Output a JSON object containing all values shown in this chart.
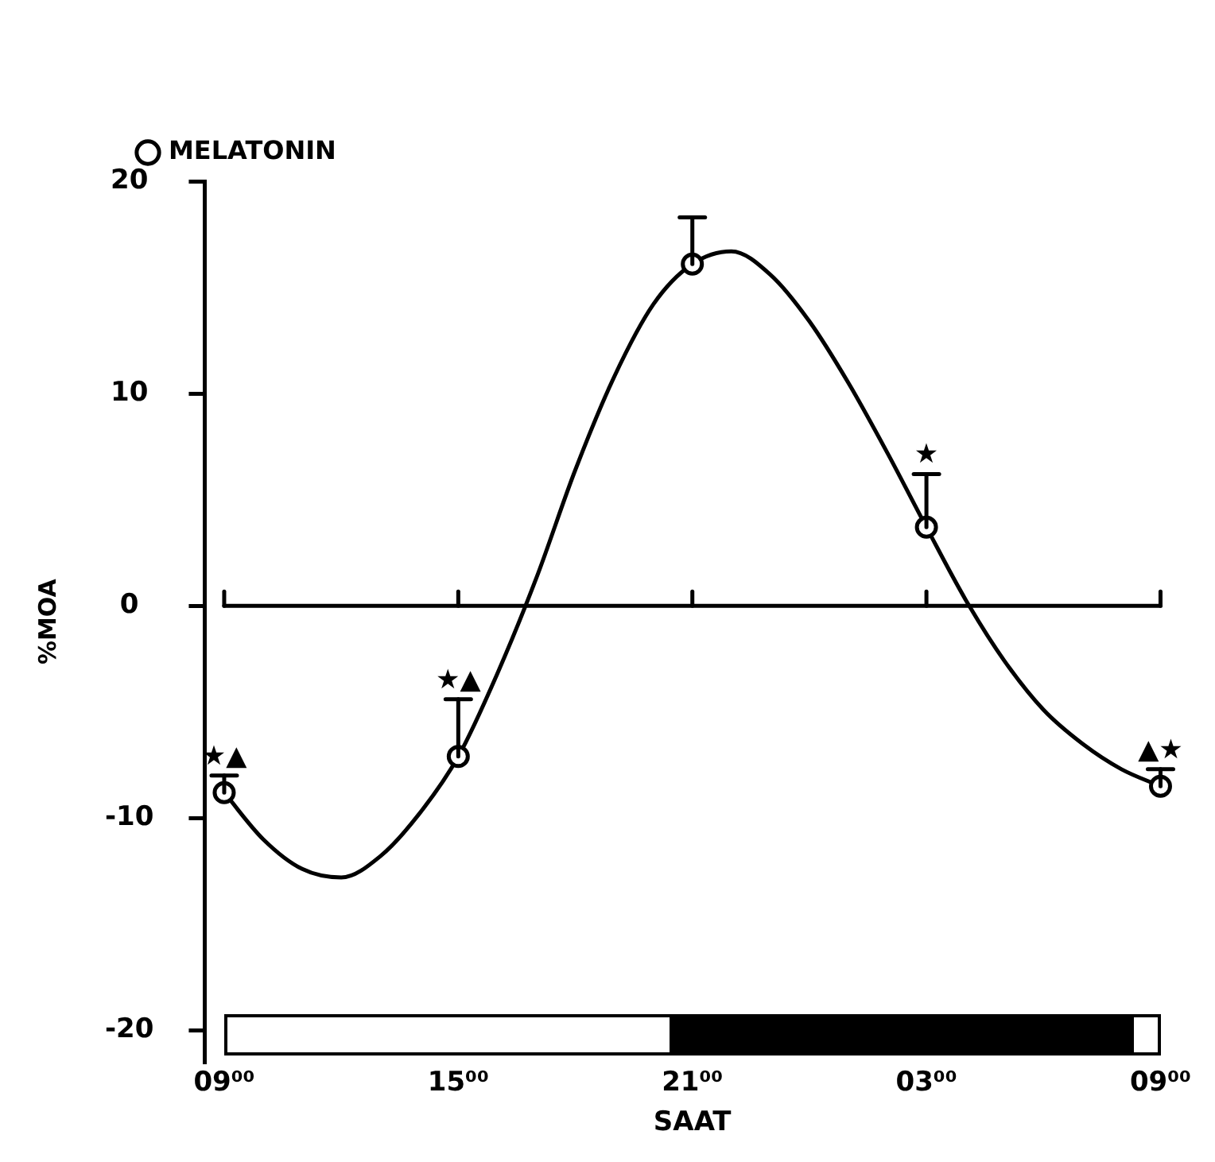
{
  "chart_data": {
    "type": "scatter",
    "xlabel": "SAAT",
    "ylabel": "%MOA",
    "categories": [
      "09⁰⁰",
      null,
      null,
      null,
      null,
      null,
      "15⁰⁰",
      null,
      null,
      null,
      null,
      null,
      "21⁰⁰",
      null,
      null,
      null,
      null,
      null,
      "03⁰⁰",
      null,
      null,
      null,
      null,
      null,
      "09⁰⁰"
    ],
    "ylim": [
      -21.5,
      20
    ],
    "yticks": [
      -20,
      -10,
      0,
      10,
      20
    ],
    "series": [
      {
        "name": "MELATONIN",
        "type": "scatter",
        "color": "#000000",
        "values": [
          -8.8,
          null,
          null,
          null,
          null,
          null,
          -7.1,
          null,
          null,
          null,
          null,
          null,
          16.1,
          null,
          null,
          null,
          null,
          null,
          3.7,
          null,
          null,
          null,
          null,
          null,
          -8.5
        ],
        "errors": [
          [
            -8.8,
            -8.0
          ],
          null,
          null,
          null,
          null,
          null,
          [
            -7.1,
            -4.4
          ],
          null,
          null,
          null,
          null,
          null,
          [
            16.1,
            18.3
          ],
          null,
          null,
          null,
          null,
          null,
          [
            3.7,
            6.2
          ],
          null,
          null,
          null,
          null,
          null,
          [
            -8.5,
            -7.7
          ]
        ]
      },
      {
        "type": "line",
        "color": "#000000",
        "marker": "none",
        "values": [
          -8.8,
          -11.0,
          -12.4,
          -12.8,
          -11.8,
          -9.8,
          -7.1,
          -3.2,
          1.3,
          6.4,
          10.8,
          14.2,
          16.1,
          16.7,
          15.6,
          13.4,
          10.5,
          7.2,
          3.7,
          0.3,
          -2.6,
          -4.9,
          -6.5,
          -7.7,
          -8.5
        ]
      }
    ],
    "ref_lines": [
      {
        "axis": "y",
        "value": 0,
        "color": "#000000"
      }
    ],
    "annotations": [
      {
        "text": "★▲",
        "x": "09⁰⁰",
        "y": -8.0
      },
      {
        "text": "★▲",
        "x": "15⁰⁰",
        "y": -4.4
      },
      {
        "text": "★",
        "x": "03⁰⁰",
        "y": 6.2
      },
      "▲★"
    ],
    "marker": "circle",
    "grid": false,
    "legend": "top left"
  }
}
